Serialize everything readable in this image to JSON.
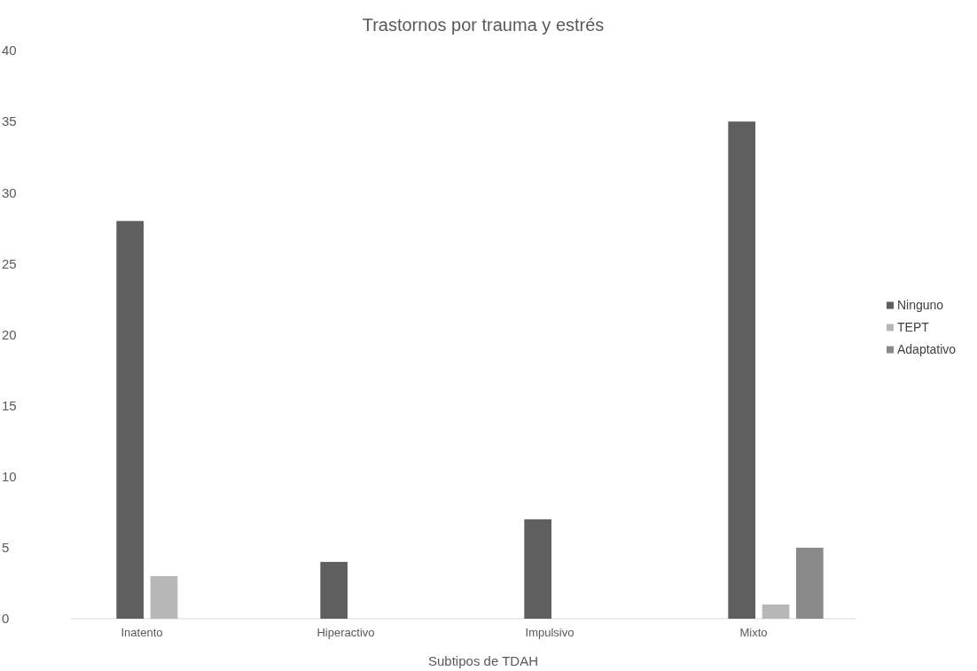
{
  "chart_data": {
    "type": "bar",
    "title": "Trastornos por trauma y estrés",
    "xlabel": "Subtipos de TDAH",
    "categories": [
      "Inatento",
      "Hiperactivo",
      "Impulsivo",
      "Mixto"
    ],
    "series": [
      {
        "name": "Ninguno",
        "color": "#5f5f5f",
        "values": [
          28,
          4,
          7,
          35
        ]
      },
      {
        "name": "TEPT",
        "color": "#b7b7b7",
        "values": [
          3,
          0,
          0,
          1
        ]
      },
      {
        "name": "Adaptativo",
        "color": "#898989",
        "values": [
          0,
          0,
          0,
          5
        ]
      }
    ],
    "ylim": [
      0,
      40
    ],
    "yticks": [
      0,
      5,
      10,
      15,
      20,
      25,
      30,
      35,
      40
    ],
    "grid": false,
    "legend": "right"
  }
}
